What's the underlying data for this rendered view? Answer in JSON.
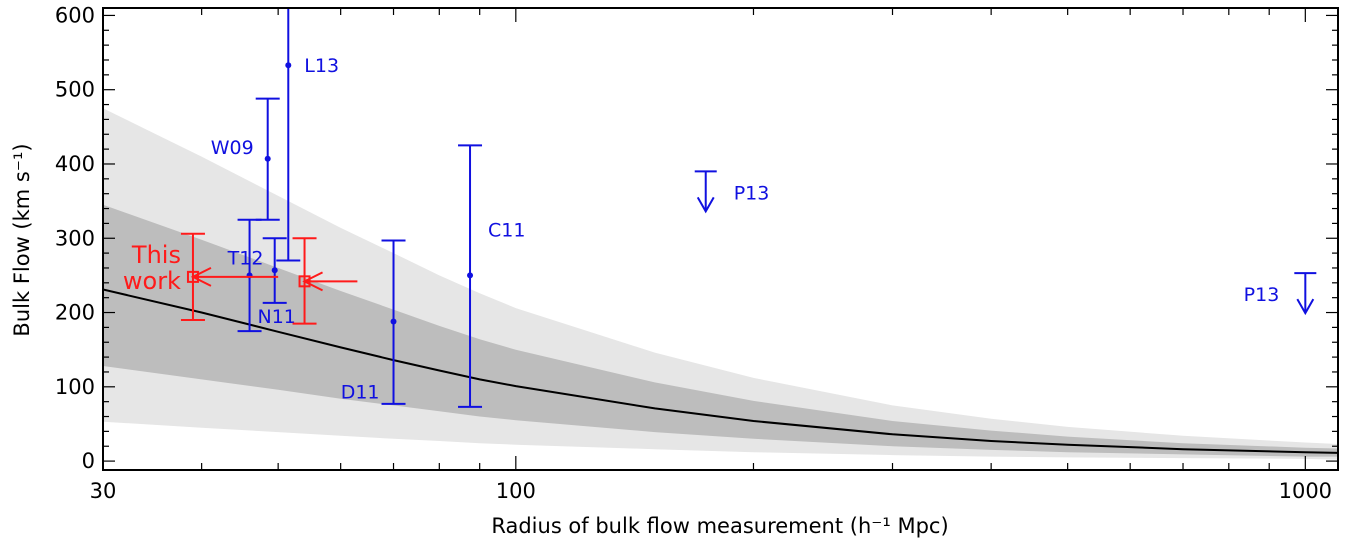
{
  "chart_data": {
    "type": "scatter",
    "title": "",
    "xlabel": "Radius of bulk flow measurement (h⁻¹ Mpc)",
    "ylabel": "Bulk Flow (km s⁻¹)",
    "xscale": "log",
    "xlim": [
      30,
      1100
    ],
    "ylim": [
      -12,
      610
    ],
    "xticks": [
      30,
      100,
      1000
    ],
    "yticks": [
      0,
      100,
      200,
      300,
      400,
      500,
      600
    ],
    "grid": false,
    "model": {
      "line_color": "#000000",
      "band_outer_color": "#e6e6e6",
      "band_inner_color": "#bdbdbd",
      "x": [
        30,
        40,
        50,
        60,
        70,
        80,
        90,
        100,
        150,
        200,
        300,
        400,
        500,
        700,
        1000,
        1100
      ],
      "y": [
        231,
        200,
        174,
        153,
        136,
        122,
        110,
        101,
        71,
        54,
        36,
        27,
        22,
        16,
        12,
        11
      ],
      "inner_lower": [
        128,
        110,
        96,
        84,
        75,
        67,
        60,
        55,
        39,
        30,
        20,
        15,
        12,
        9,
        6,
        6
      ],
      "inner_upper": [
        345,
        298,
        260,
        229,
        204,
        182,
        164,
        150,
        106,
        81,
        54,
        41,
        33,
        24,
        18,
        17
      ],
      "outer_lower": [
        53,
        45,
        39,
        34,
        30,
        27,
        24,
        22,
        16,
        12,
        8,
        6,
        5,
        4,
        3,
        2
      ],
      "outer_upper": [
        475,
        410,
        357,
        314,
        280,
        250,
        226,
        206,
        146,
        112,
        75,
        57,
        46,
        34,
        25,
        23
      ]
    },
    "series": [
      {
        "name": "blue",
        "color": "#1010e0",
        "points": [
          {
            "label": "L13",
            "x": 51.5,
            "y": 533,
            "low": 270,
            "high": 610
          },
          {
            "label": "W09",
            "x": 48.5,
            "y": 407,
            "low": 325,
            "high": 488
          },
          {
            "label": "T12",
            "x": 46,
            "y": 250,
            "low": 175,
            "high": 325
          },
          {
            "label": "N11",
            "x": 49.5,
            "y": 257,
            "low": 213,
            "high": 300
          },
          {
            "label": "D11",
            "x": 70,
            "y": 188,
            "low": 77,
            "high": 297
          },
          {
            "label": "C11",
            "x": 87.5,
            "y": 250,
            "low": 73,
            "high": 425
          }
        ],
        "upper_limits": [
          {
            "label": "P13",
            "x": 174,
            "y": 390
          },
          {
            "label": "P13",
            "x": 1000,
            "y": 253
          }
        ]
      },
      {
        "name": "This work",
        "color": "#ff1a1a",
        "points": [
          {
            "x": 39,
            "y": 248,
            "low": 190,
            "high": 306,
            "arrow_from": 50
          },
          {
            "x": 54,
            "y": 242,
            "low": 185,
            "high": 300,
            "arrow_from": 63
          }
        ],
        "label_lines": [
          "This",
          "work"
        ]
      }
    ]
  }
}
